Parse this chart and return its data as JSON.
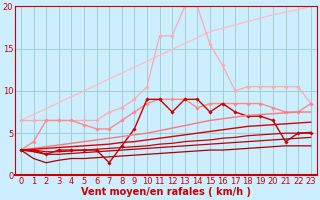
{
  "background_color": "#cceeff",
  "grid_color": "#99cccc",
  "xlabel": "Vent moyen/en rafales ( km/h )",
  "xlabel_color": "#cc0000",
  "xlabel_fontsize": 7,
  "tick_color": "#cc0000",
  "tick_fontsize": 6,
  "xlim": [
    -0.5,
    23.5
  ],
  "ylim": [
    0,
    20
  ],
  "yticks": [
    0,
    5,
    10,
    15,
    20
  ],
  "xticks": [
    0,
    1,
    2,
    3,
    4,
    5,
    6,
    7,
    8,
    9,
    10,
    11,
    12,
    13,
    14,
    15,
    16,
    17,
    18,
    19,
    20,
    21,
    22,
    23
  ],
  "x": [
    0,
    1,
    2,
    3,
    4,
    5,
    6,
    7,
    8,
    9,
    10,
    11,
    12,
    13,
    14,
    15,
    16,
    17,
    18,
    19,
    20,
    21,
    22,
    23
  ],
  "lines": [
    {
      "y": [
        6.5,
        7.2,
        7.9,
        8.6,
        9.3,
        10.0,
        10.7,
        11.4,
        12.1,
        12.8,
        13.5,
        14.2,
        14.9,
        15.6,
        16.3,
        17.0,
        17.4,
        17.8,
        18.2,
        18.6,
        19.0,
        19.3,
        19.6,
        20.0
      ],
      "color": "#ffbbbb",
      "lw": 0.9,
      "marker": null,
      "ms": 0
    },
    {
      "y": [
        6.5,
        6.5,
        6.5,
        6.5,
        6.5,
        6.5,
        6.5,
        7.5,
        8.0,
        9.0,
        10.5,
        16.5,
        16.5,
        20.0,
        20.0,
        15.5,
        13.0,
        10.0,
        10.5,
        10.5,
        10.5,
        10.5,
        10.5,
        8.5
      ],
      "color": "#ffaaaa",
      "lw": 0.9,
      "marker": "D",
      "ms": 1.8
    },
    {
      "y": [
        3.0,
        4.0,
        6.5,
        6.5,
        6.5,
        6.0,
        5.5,
        5.5,
        6.5,
        7.5,
        8.5,
        9.0,
        9.0,
        9.0,
        8.0,
        8.5,
        8.5,
        8.5,
        8.5,
        8.5,
        8.0,
        7.5,
        7.5,
        8.5
      ],
      "color": "#ff8888",
      "lw": 1.0,
      "marker": "D",
      "ms": 1.8
    },
    {
      "y": [
        3.0,
        3.0,
        2.5,
        3.0,
        3.0,
        3.0,
        3.0,
        1.5,
        3.5,
        5.5,
        9.0,
        9.0,
        7.5,
        9.0,
        9.0,
        7.5,
        8.5,
        7.5,
        7.0,
        7.0,
        6.5,
        4.0,
        5.0,
        5.0
      ],
      "color": "#cc0000",
      "lw": 1.0,
      "marker": "D",
      "ms": 1.8
    },
    {
      "y": [
        3.0,
        3.2,
        3.4,
        3.6,
        3.8,
        4.0,
        4.2,
        4.4,
        4.6,
        4.8,
        5.0,
        5.3,
        5.6,
        5.9,
        6.2,
        6.5,
        6.7,
        6.9,
        7.1,
        7.2,
        7.3,
        7.4,
        7.5,
        7.5
      ],
      "color": "#ff7777",
      "lw": 1.0,
      "marker": null,
      "ms": 0
    },
    {
      "y": [
        3.0,
        3.1,
        3.2,
        3.3,
        3.4,
        3.5,
        3.6,
        3.7,
        3.9,
        4.0,
        4.2,
        4.4,
        4.6,
        4.8,
        5.0,
        5.2,
        5.4,
        5.6,
        5.8,
        5.9,
        6.0,
        6.1,
        6.2,
        6.3
      ],
      "color": "#dd0000",
      "lw": 1.0,
      "marker": null,
      "ms": 0
    },
    {
      "y": [
        3.0,
        3.0,
        2.8,
        2.8,
        2.9,
        3.0,
        3.1,
        3.2,
        3.3,
        3.4,
        3.5,
        3.7,
        3.8,
        4.0,
        4.1,
        4.2,
        4.4,
        4.5,
        4.7,
        4.8,
        4.9,
        5.0,
        5.0,
        5.1
      ],
      "color": "#cc0000",
      "lw": 0.9,
      "marker": null,
      "ms": 0
    },
    {
      "y": [
        3.0,
        2.8,
        2.5,
        2.5,
        2.6,
        2.7,
        2.8,
        2.9,
        3.0,
        3.1,
        3.2,
        3.3,
        3.4,
        3.5,
        3.6,
        3.7,
        3.8,
        3.9,
        4.0,
        4.1,
        4.2,
        4.3,
        4.4,
        4.5
      ],
      "color": "#bb0000",
      "lw": 0.9,
      "marker": null,
      "ms": 0
    },
    {
      "y": [
        3.0,
        2.0,
        1.5,
        1.8,
        2.0,
        2.0,
        2.1,
        2.2,
        2.3,
        2.4,
        2.5,
        2.6,
        2.7,
        2.8,
        2.9,
        3.0,
        3.0,
        3.1,
        3.2,
        3.3,
        3.4,
        3.5,
        3.5,
        3.5
      ],
      "color": "#aa0000",
      "lw": 0.9,
      "marker": null,
      "ms": 0
    }
  ]
}
